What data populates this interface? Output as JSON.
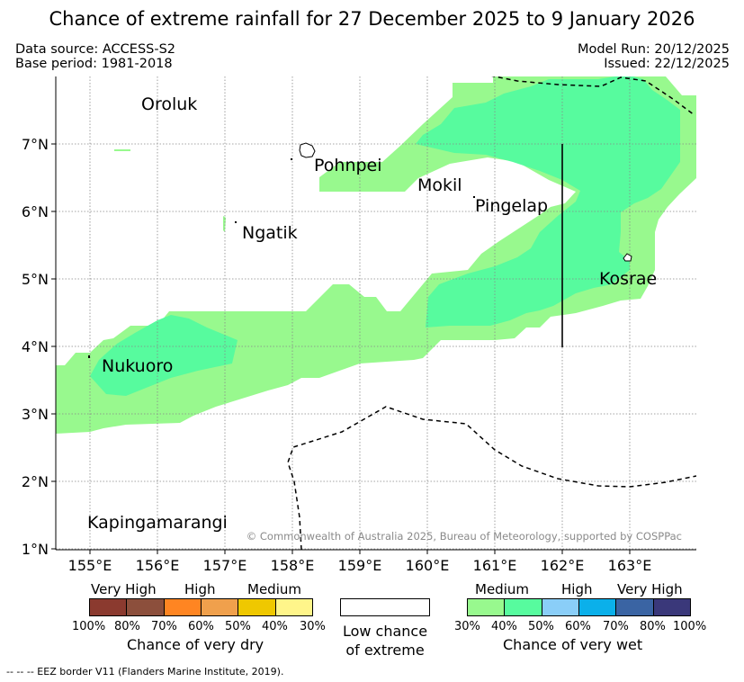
{
  "title": "Chance of extreme rainfall for 27 December 2025 to 9 January 2026",
  "meta": {
    "data_source": "Data source: ACCESS-S2",
    "base_period": "Base period: 1981-2018",
    "model_run": "Model Run: 20/12/2025",
    "issued": "Issued: 22/12/2025"
  },
  "map": {
    "latitude_labels": [
      "7°N",
      "6°N",
      "5°N",
      "4°N",
      "3°N",
      "2°N",
      "1°N"
    ],
    "longitude_labels": [
      "155°E",
      "156°E",
      "157°E",
      "158°E",
      "159°E",
      "160°E",
      "161°E",
      "162°E",
      "163°E"
    ],
    "extent": {
      "lon": [
        154.5,
        164.0
      ],
      "lat": [
        0.95,
        7.95
      ]
    },
    "places": {
      "oroluk": "Oroluk",
      "pohnpei": "Pohnpei",
      "mokil": "Mokil",
      "pingelap": "Pingelap",
      "ngatik": "Ngatik",
      "kosrae": "Kosrae",
      "nukuoro": "Nukuoro",
      "kapingamarangi": "Kapingamarangi"
    },
    "copyright": "© Commonwealth of Australia 2025, Bureau of Meteorology, supported by COSPPac"
  },
  "legend": {
    "dry": {
      "categories": [
        "Very High",
        "High",
        "Medium"
      ],
      "percents": [
        "100%",
        "80%",
        "70%",
        "60%",
        "50%",
        "40%",
        "30%"
      ],
      "caption": "Chance of very dry",
      "colors": [
        "#8B3A2F",
        "#8C4F3C",
        "#FF8522",
        "#F0A04C",
        "#EFC800",
        "#FFF58A"
      ]
    },
    "low": {
      "line1": "Low chance",
      "line2": "of extreme",
      "color": "#FFFFFF"
    },
    "wet": {
      "categories": [
        "Medium",
        "High",
        "Very High"
      ],
      "percents": [
        "30%",
        "40%",
        "50%",
        "60%",
        "70%",
        "80%",
        "100%"
      ],
      "caption": "Chance of very wet",
      "colors": [
        "#98F98E",
        "#57FB9E",
        "#8ACEF8",
        "#0BB0EA",
        "#3A64A3",
        "#3A387A"
      ]
    }
  },
  "eez_note": "--  --  -- EEZ border V11 (Flanders Marine Institute, 2019)."
}
